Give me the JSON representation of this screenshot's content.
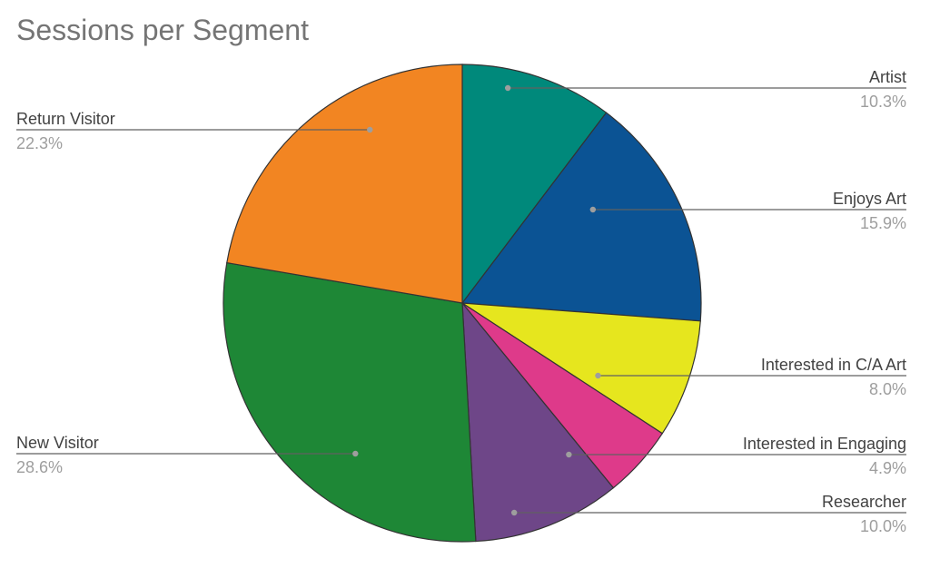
{
  "chart_data": {
    "type": "pie",
    "title": "Sessions per Segment",
    "slices": [
      {
        "label": "Artist",
        "value": 10.3,
        "percent_label": "10.3%",
        "color": "#00897B",
        "side": "right"
      },
      {
        "label": "Enjoys Art",
        "value": 15.9,
        "percent_label": "15.9%",
        "color": "#0B5394",
        "side": "right"
      },
      {
        "label": "Interested in C/A Art",
        "value": 8.0,
        "percent_label": "8.0%",
        "color": "#E6E61E",
        "side": "right"
      },
      {
        "label": "Interested in Engaging",
        "value": 4.9,
        "percent_label": "4.9%",
        "color": "#DE3A8A",
        "side": "right"
      },
      {
        "label": "Researcher",
        "value": 10.0,
        "percent_label": "10.0%",
        "color": "#6E4688",
        "side": "right"
      },
      {
        "label": "New Visitor",
        "value": 28.6,
        "percent_label": "28.6%",
        "color": "#1E8736",
        "side": "left"
      },
      {
        "label": "Return Visitor",
        "value": 22.3,
        "percent_label": "22.3%",
        "color": "#F28522",
        "side": "left"
      }
    ],
    "start_angle_deg": 0,
    "direction": "clockwise",
    "legend": "none"
  }
}
